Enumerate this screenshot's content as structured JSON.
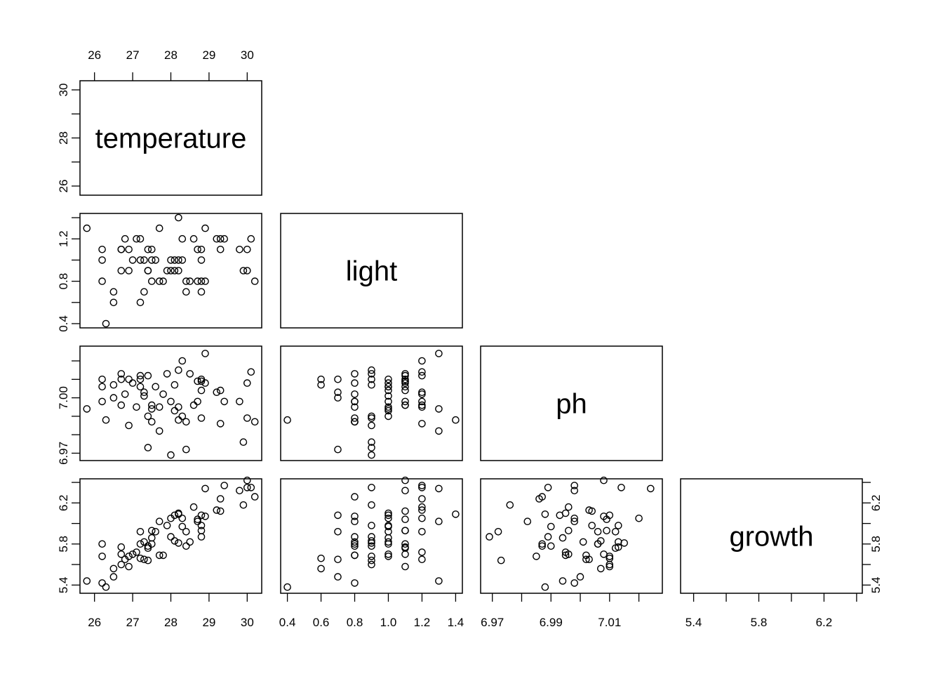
{
  "chart_data": {
    "type": "scatter",
    "subtype": "pairs-lower",
    "variables": [
      "temperature",
      "light",
      "ph",
      "growth"
    ],
    "ranges": {
      "temperature": [
        25.62,
        30.38
      ],
      "light": [
        0.36,
        1.44
      ],
      "ph": [
        6.966,
        7.028
      ],
      "growth": [
        5.32,
        6.435
      ]
    },
    "ticks": {
      "temperature": {
        "values": [
          26,
          27,
          28,
          29,
          30
        ],
        "labels_top": [
          "26",
          "27",
          "28",
          "29",
          "30"
        ],
        "labels_bottom": [
          "26",
          "27",
          "28",
          "29",
          "30"
        ],
        "labels_left": [
          "26",
          "",
          "28",
          "",
          "30"
        ]
      },
      "light": {
        "values": [
          0.4,
          0.6,
          0.8,
          1.0,
          1.2,
          1.4
        ],
        "labels_bottom": [
          "0.4",
          "0.6",
          "0.8",
          "1.0",
          "1.2",
          "1.4"
        ],
        "labels_left": [
          "0.4",
          "",
          "0.8",
          "",
          "1.2",
          ""
        ]
      },
      "ph": {
        "values": [
          6.97,
          6.98,
          6.99,
          7.0,
          7.01,
          7.02
        ],
        "labels_bottom": [
          "6.97",
          "",
          "6.99",
          "",
          "7.01",
          ""
        ],
        "labels_left": [
          "6.97",
          "",
          "",
          "7.00",
          "",
          ""
        ]
      },
      "growth": {
        "values": [
          5.4,
          5.6,
          5.8,
          6.0,
          6.2,
          6.4
        ],
        "labels_bottom": [
          "5.4",
          "",
          "5.8",
          "",
          "6.2",
          ""
        ],
        "labels_right": [
          "5.4",
          "",
          "5.8",
          "",
          "6.2",
          ""
        ],
        "labels_left": [
          "5.4",
          "",
          "5.8",
          "",
          "6.2",
          ""
        ]
      }
    },
    "observations": {
      "temperature": [
        25.8,
        26.2,
        26.2,
        26.2,
        26.3,
        26.5,
        26.5,
        26.7,
        26.7,
        26.7,
        26.8,
        26.9,
        26.9,
        27.0,
        27.1,
        27.2,
        27.2,
        27.2,
        27.3,
        27.3,
        27.4,
        27.4,
        27.4,
        27.5,
        27.5,
        27.5,
        27.6,
        27.7,
        27.7,
        27.8,
        27.9,
        28.0,
        28.0,
        28.1,
        28.1,
        28.2,
        28.2,
        28.2,
        28.3,
        28.3,
        28.4,
        28.4,
        28.5,
        28.6,
        28.7,
        28.7,
        28.8,
        28.8,
        28.8,
        28.8,
        28.9,
        28.9,
        29.2,
        29.3,
        29.3,
        29.4,
        29.8,
        29.9,
        30.0,
        30.0,
        30.1,
        30.2
      ],
      "light": [
        1.3,
        1.1,
        1.0,
        0.8,
        0.4,
        0.7,
        0.6,
        1.1,
        1.1,
        0.9,
        1.2,
        1.1,
        0.9,
        1.0,
        1.2,
        1.2,
        1.0,
        0.6,
        1.0,
        0.7,
        1.1,
        0.9,
        0.9,
        1.1,
        1.0,
        0.8,
        1.0,
        1.3,
        0.8,
        0.8,
        0.9,
        1.0,
        0.9,
        1.0,
        0.9,
        1.4,
        1.0,
        0.9,
        1.2,
        1.0,
        0.8,
        0.7,
        0.8,
        1.2,
        1.1,
        0.8,
        1.1,
        1.0,
        0.8,
        0.7,
        1.3,
        0.8,
        1.2,
        1.2,
        1.1,
        1.2,
        1.1,
        0.9,
        1.1,
        0.9,
        1.2,
        0.8
      ],
      "ph": [
        6.994,
        7.006,
        7.01,
        6.998,
        6.988,
        7.0,
        7.007,
        7.013,
        6.996,
        7.01,
        7.002,
        7.01,
        6.985,
        7.008,
        6.995,
        7.012,
        7.006,
        7.01,
        7.001,
        7.003,
        7.012,
        6.99,
        6.973,
        6.996,
        6.994,
        6.987,
        7.006,
        6.982,
        6.995,
        7.002,
        7.013,
        6.998,
        6.969,
        6.993,
        7.007,
        6.988,
        6.995,
        7.015,
        7.02,
        6.99,
        6.987,
        6.972,
        7.013,
        6.996,
        7.009,
        6.998,
        7.009,
        7.004,
        6.989,
        7.01,
        7.024,
        7.008,
        7.003,
        6.986,
        7.004,
        6.998,
        6.998,
        6.976,
        7.008,
        6.989,
        7.014,
        6.987
      ],
      "growth": [
        5.44,
        5.8,
        5.68,
        5.42,
        5.38,
        5.48,
        5.56,
        5.77,
        5.7,
        5.6,
        5.65,
        5.58,
        5.68,
        5.7,
        5.72,
        5.92,
        5.8,
        5.66,
        5.82,
        5.65,
        5.76,
        5.78,
        5.64,
        5.93,
        5.86,
        5.8,
        5.92,
        6.02,
        5.69,
        5.69,
        5.98,
        6.05,
        5.87,
        6.08,
        5.83,
        6.09,
        6.1,
        5.81,
        6.05,
        5.97,
        5.78,
        5.92,
        5.82,
        6.16,
        6.04,
        6.02,
        5.93,
        5.98,
        5.87,
        6.08,
        6.34,
        6.07,
        6.13,
        6.24,
        6.12,
        6.37,
        6.32,
        6.18,
        6.42,
        6.35,
        6.35,
        6.26
      ]
    },
    "grid": false,
    "legend": "none"
  }
}
